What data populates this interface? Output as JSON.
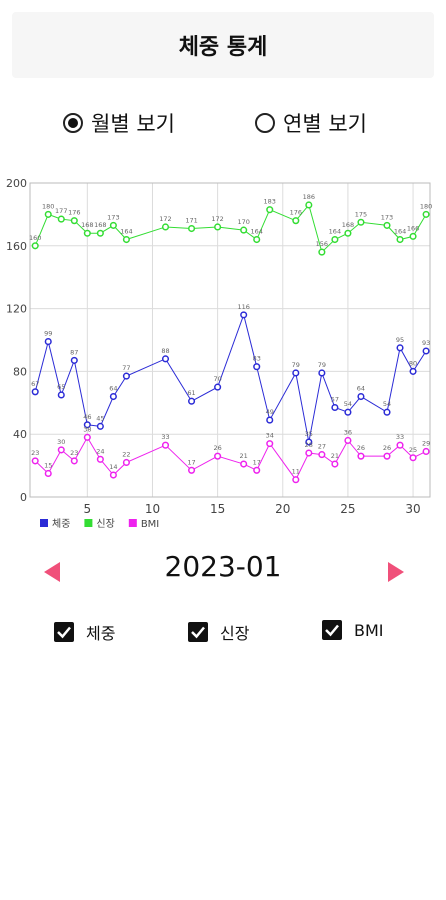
{
  "header": {
    "title": "체중 통계"
  },
  "view_options": {
    "items": [
      "월별 보기",
      "연별 보기"
    ],
    "selected": 0
  },
  "chart_data": {
    "type": "line",
    "x": [
      1,
      2,
      3,
      4,
      5,
      6,
      7,
      8,
      11,
      13,
      15,
      17,
      18,
      19,
      21,
      22,
      23,
      24,
      25,
      26,
      28,
      29,
      30,
      31
    ],
    "xlim": [
      0.6,
      31.3
    ],
    "xticks": [
      5,
      10,
      15,
      20,
      25,
      30
    ],
    "ylim": [
      0,
      200
    ],
    "yticks": [
      0,
      40,
      80,
      120,
      160,
      200
    ],
    "grid": true,
    "legend": "bottom-left",
    "series": [
      {
        "name": "체중",
        "color": "#2b2bd6",
        "values": [
          67,
          99,
          65,
          87,
          46,
          45,
          64,
          77,
          88,
          61,
          70,
          116,
          83,
          49,
          79,
          35,
          79,
          57,
          54,
          64,
          54,
          95,
          80,
          93
        ]
      },
      {
        "name": "신장",
        "color": "#33dd33",
        "values": [
          160,
          180,
          177,
          176,
          168,
          168,
          173,
          164,
          172,
          171,
          172,
          170,
          164,
          183,
          176,
          186,
          156,
          164,
          168,
          175,
          173,
          164,
          166,
          180
        ]
      },
      {
        "name": "BMI",
        "color": "#ee22ee",
        "values": [
          23,
          15,
          30,
          23,
          38,
          24,
          14,
          22,
          33,
          17,
          26,
          21,
          17,
          34,
          11,
          28,
          27,
          21,
          36,
          26,
          26,
          33,
          25,
          29
        ]
      }
    ]
  },
  "period": {
    "label": "2023-01"
  },
  "filters": {
    "items": [
      "체중",
      "신장",
      "BMI"
    ],
    "checked": [
      true,
      true,
      true
    ]
  }
}
